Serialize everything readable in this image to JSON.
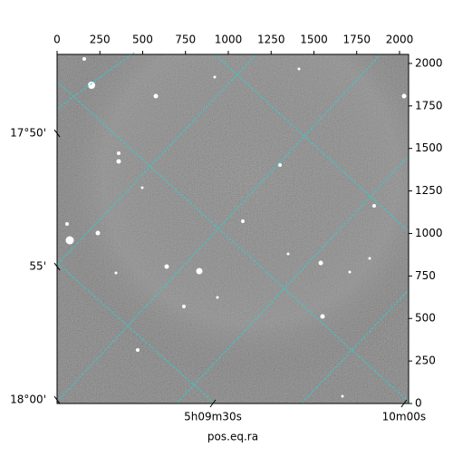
{
  "chart_data": {
    "type": "image",
    "xlabel": "pos.eq.ra",
    "xlim": [
      0,
      2053
    ],
    "ylim": [
      0,
      2053
    ],
    "xticks": [
      0,
      250,
      500,
      750,
      1000,
      1250,
      1500,
      1750,
      2000
    ],
    "yticks": [
      0,
      250,
      500,
      750,
      1000,
      1250,
      1500,
      1750,
      2000
    ],
    "dec_ticks": [
      {
        "value": 1589,
        "label": "17°50'"
      },
      {
        "value": 805,
        "label": "55'"
      },
      {
        "value": 21,
        "label": "18°00'"
      }
    ],
    "ra_ticks": [
      {
        "value": 910,
        "label": "5h09m30s"
      },
      {
        "value": 2026,
        "label": "10m00s"
      }
    ],
    "grid_color": "#2fd0d0"
  }
}
